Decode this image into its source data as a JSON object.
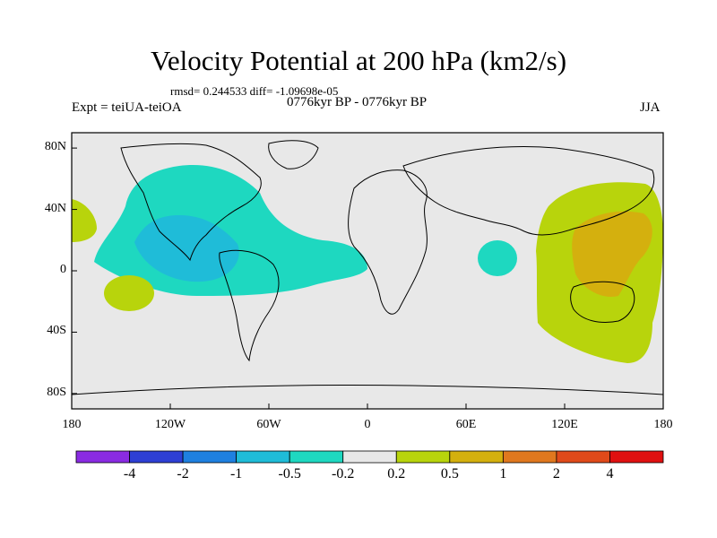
{
  "figure": {
    "title": "Velocity Potential at 200 hPa (km2/s)",
    "stats": "rmsd= 0.244533 diff= -1.09698e-05",
    "left_label": "Expt = teiUA-teiOA",
    "center_label": "0776kyr BP - 0776kyr BP",
    "right_label": "JJA"
  },
  "axes": {
    "x_ticks": [
      "180",
      "120W",
      "60W",
      "0",
      "60E",
      "120E",
      "180"
    ],
    "y_ticks": [
      "80N",
      "40N",
      "0",
      "40S",
      "80S"
    ]
  },
  "colorbar": {
    "labels": [
      "-4",
      "-2",
      "-1",
      "-0.5",
      "-0.2",
      "0.2",
      "0.5",
      "1",
      "2",
      "4"
    ],
    "colors": [
      "#8a2be2",
      "#2e3fd4",
      "#1e80e0",
      "#1fbcd8",
      "#1ed8c0",
      "#e8e8e8",
      "#b8d40c",
      "#d4b00e",
      "#e0781e",
      "#e04a1a",
      "#e01010"
    ]
  },
  "chart_data": {
    "type": "map",
    "projection": "cylindrical-equidistant",
    "lon_range": [
      -180,
      180
    ],
    "lat_range": [
      -90,
      90
    ],
    "field": "velocity potential anomaly at 200 hPa",
    "units": "km2/s",
    "regions": [
      {
        "name": "eastern-pacific-atlantic-negative",
        "level": "-0.5 to -0.2",
        "lon_center": -75,
        "lat_center": 10
      },
      {
        "name": "eastern-pacific-core",
        "level": "-1 to -0.5",
        "lon_center": -100,
        "lat_center": 5
      },
      {
        "name": "indian-ocean-negative",
        "level": "-0.5 to -0.2",
        "lon_center": 75,
        "lat_center": -2
      },
      {
        "name": "western-pacific-positive",
        "level": "0.2 to 0.5",
        "lon_center": 140,
        "lat_center": 0
      },
      {
        "name": "maritime-continent-core",
        "level": "0.5 to 1",
        "lon_center": 130,
        "lat_center": 10
      },
      {
        "name": "date-line-positive-west",
        "level": "0.2 to 0.5",
        "lon_center": -175,
        "lat_center": 25
      },
      {
        "name": "south-pacific-positive",
        "level": "0.2 to 0.5",
        "lon_center": -150,
        "lat_center": -28
      }
    ]
  }
}
